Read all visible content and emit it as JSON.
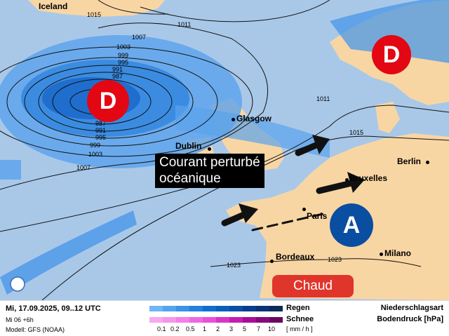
{
  "map": {
    "cities": [
      "Iceland",
      "Glasgow",
      "Dublin",
      "Berlin",
      "Bruxelles",
      "Paris",
      "Bordeaux",
      "Milano"
    ],
    "isobars": [
      "1015",
      "1011",
      "1007",
      "1003",
      "999",
      "995",
      "991",
      "987",
      "987",
      "991",
      "995",
      "999",
      "1003",
      "1007",
      "1011",
      "1015",
      "1023",
      "1023"
    ],
    "markers": {
      "low1": "D",
      "low2": "D",
      "high": "A"
    },
    "banner_line1": "Courant perturbé",
    "banner_line2": "océanique",
    "warm_label": "Chaud",
    "colors": {
      "ocean": "#a9c8e8",
      "land": "#f8d6a4",
      "low": "#e30613",
      "high": "#0a4ea2",
      "warm": "#e0352b"
    }
  },
  "footer": {
    "datetime": "Mi, 17.09.2025, 09..12 UTC",
    "run": "Mi 06 +6h",
    "model": "Modell: GFS (NOAA)",
    "rain_label": "Regen",
    "snow_label": "Schnee",
    "unit": "[ mm / h ]",
    "ticks": [
      "0.1",
      "0.2",
      "0.5",
      "1",
      "2",
      "3",
      "5",
      "7",
      "10"
    ],
    "title1": "Niederschlagsart",
    "title2": "Bodendruck [hPa]",
    "rain_colors": [
      "#6fb6f4",
      "#54a5ef",
      "#3b92e8",
      "#2380e0",
      "#0f6ed4",
      "#0a5fbd",
      "#084fa5",
      "#083f8c",
      "#0a3474",
      "#0b2a5d"
    ],
    "snow_colors": [
      "#f7a8f0",
      "#f595ec",
      "#f37fe8",
      "#ef67e2",
      "#e94fd9",
      "#d933c8",
      "#c21fb1",
      "#a50f98",
      "#870a7d",
      "#6a0761"
    ]
  }
}
